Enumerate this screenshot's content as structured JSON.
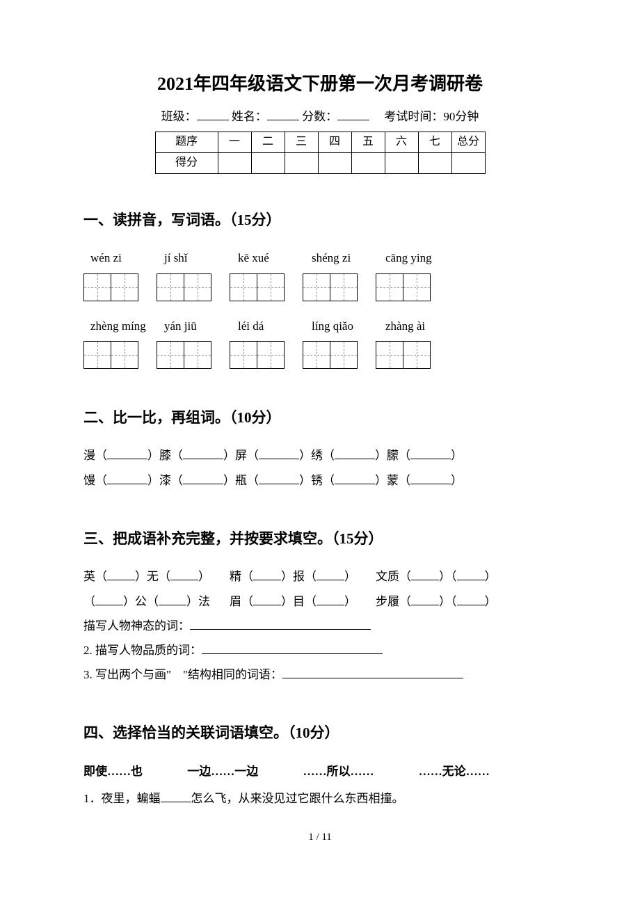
{
  "title": "2021年四年级语文下册第一次月考调研卷",
  "info": {
    "class_label": "班级：",
    "name_label": "姓名：",
    "score_label": "分数：",
    "time_label": "考试时间：90分钟"
  },
  "score_table": {
    "row1_label": "题序",
    "row2_label": "得分",
    "columns": [
      "一",
      "二",
      "三",
      "四",
      "五",
      "六",
      "七",
      "总分"
    ]
  },
  "section1": {
    "heading": "一、读拼音，写词语。（15分）",
    "pinyin_row1": [
      "wén zi",
      "jí shǐ",
      "kē xué",
      "shéng zi",
      "cāng ying"
    ],
    "pinyin_row2": [
      "zhèng míng",
      "yán jiū",
      "léi dá",
      "líng qiǎo",
      "zhàng ài"
    ],
    "boxes_per_group": 2,
    "groups_per_row": 5
  },
  "section2": {
    "heading": "二、比一比，再组词。（10分）",
    "pairs_row1": [
      "漫",
      "膝",
      "屏",
      "绣",
      "朦"
    ],
    "pairs_row2": [
      "馒",
      "漆",
      "瓶",
      "锈",
      "蒙"
    ]
  },
  "section3": {
    "heading": "三、把成语补充完整，并按要求填空。（15分）",
    "idioms": [
      [
        "英（",
        "）无（",
        "）"
      ],
      [
        "精（",
        "）报（",
        "）"
      ],
      [
        "文质（",
        "）（",
        "）"
      ],
      [
        "（",
        "）公（",
        "）法"
      ],
      [
        "眉（",
        "）目（",
        "）"
      ],
      [
        "步履（",
        "）（",
        "）"
      ]
    ],
    "sub1": "描写人物神态的词：",
    "sub2": "2. 描写人物品质的词：",
    "sub3": "3. 写出两个与画\"　\"结构相同的词语："
  },
  "section4": {
    "heading": "四、选择恰当的关联词语填空。（10分）",
    "options": [
      "即使……也",
      "一边……一边",
      "……所以……",
      "……无论……"
    ],
    "sentence1": "1．夜里，蝙蝠",
    "sentence1_end": "怎么飞，从来没见过它跟什么东西相撞。"
  },
  "page_num": "1 / 11",
  "colors": {
    "text": "#000000",
    "background": "#ffffff",
    "dash": "#999999"
  },
  "fonts": {
    "body_size": 17,
    "title_size": 26,
    "heading_size": 21
  }
}
